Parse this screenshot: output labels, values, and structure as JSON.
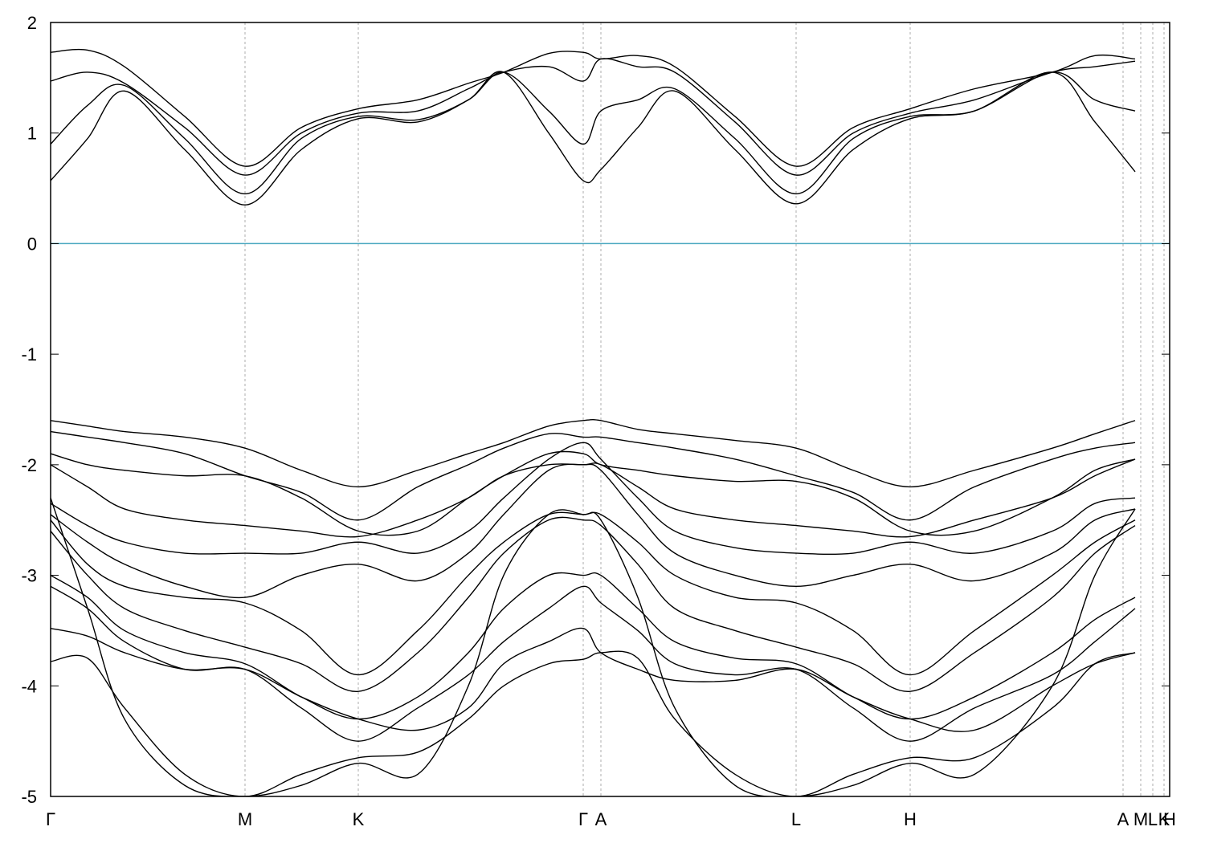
{
  "chart_data": {
    "type": "line",
    "xlim": [
      0,
      1393
    ],
    "ylim": [
      -5,
      2
    ],
    "yticks": [
      -5,
      -4,
      -3,
      -2,
      -1,
      0,
      1,
      2
    ],
    "xticks": [
      {
        "value": 0,
        "label": "Γ"
      },
      {
        "value": 242,
        "label": "M"
      },
      {
        "value": 383,
        "label": "K"
      },
      {
        "value": 663,
        "label": "Γ"
      },
      {
        "value": 685,
        "label": "A"
      },
      {
        "value": 928,
        "label": "L"
      },
      {
        "value": 1070,
        "label": "H"
      },
      {
        "value": 1335,
        "label": "A"
      },
      {
        "value": 1357,
        "label": "M"
      },
      {
        "value": 1372,
        "label": "L"
      },
      {
        "value": 1386,
        "label": "K"
      },
      {
        "value": 1393,
        "label": "H"
      }
    ],
    "grid": true,
    "fermi_level": 0,
    "fermi_color": "#4aa8c0",
    "x": [
      0,
      46,
      92,
      167,
      242,
      312,
      383,
      457,
      520,
      564,
      620,
      663,
      685,
      731,
      777,
      852,
      928,
      999,
      1070,
      1150,
      1247,
      1300,
      1350
    ],
    "series": [
      {
        "color": "#000000",
        "values": [
          0.57,
          0.95,
          1.38,
          0.85,
          0.35,
          0.85,
          1.13,
          1.1,
          1.3,
          1.55,
          1.0,
          0.57,
          0.67,
          1.05,
          1.38,
          0.85,
          0.36,
          0.85,
          1.13,
          1.2,
          1.55,
          1.1,
          0.65
        ]
      },
      {
        "color": "#000000",
        "values": [
          0.9,
          1.25,
          1.43,
          0.95,
          0.45,
          0.95,
          1.15,
          1.12,
          1.3,
          1.55,
          1.2,
          0.9,
          1.2,
          1.3,
          1.4,
          0.95,
          0.45,
          0.95,
          1.15,
          1.2,
          1.55,
          1.3,
          1.2
        ]
      },
      {
        "color": "#000000",
        "values": [
          1.47,
          1.55,
          1.45,
          1.05,
          0.62,
          1.0,
          1.18,
          1.2,
          1.4,
          1.55,
          1.6,
          1.47,
          1.67,
          1.6,
          1.55,
          1.1,
          0.62,
          1.0,
          1.18,
          1.3,
          1.55,
          1.6,
          1.65
        ]
      },
      {
        "color": "#000000",
        "values": [
          1.73,
          1.75,
          1.6,
          1.15,
          0.7,
          1.05,
          1.22,
          1.3,
          1.45,
          1.55,
          1.72,
          1.73,
          1.67,
          1.7,
          1.6,
          1.15,
          0.7,
          1.05,
          1.22,
          1.4,
          1.55,
          1.7,
          1.67
        ]
      },
      {
        "color": "#000000",
        "values": [
          -1.6,
          -1.65,
          -1.7,
          -1.75,
          -1.85,
          -2.05,
          -2.2,
          -2.05,
          -1.9,
          -1.8,
          -1.65,
          -1.6,
          -1.6,
          -1.68,
          -1.72,
          -1.78,
          -1.85,
          -2.05,
          -2.2,
          -2.05,
          -1.85,
          -1.72,
          -1.6
        ]
      },
      {
        "color": "#000000",
        "values": [
          -1.7,
          -1.75,
          -1.8,
          -1.9,
          -2.1,
          -2.25,
          -2.5,
          -2.2,
          -2.0,
          -1.85,
          -1.72,
          -1.75,
          -1.75,
          -1.8,
          -1.85,
          -1.95,
          -2.1,
          -2.25,
          -2.5,
          -2.2,
          -1.95,
          -1.85,
          -1.8
        ]
      },
      {
        "color": "#000000",
        "values": [
          -1.9,
          -2.0,
          -2.05,
          -2.1,
          -2.1,
          -2.3,
          -2.6,
          -2.6,
          -2.3,
          -2.1,
          -1.9,
          -1.9,
          -2.0,
          -2.05,
          -2.1,
          -2.15,
          -2.15,
          -2.3,
          -2.6,
          -2.6,
          -2.3,
          -2.05,
          -1.95
        ]
      },
      {
        "color": "#000000",
        "values": [
          -2.0,
          -2.2,
          -2.4,
          -2.5,
          -2.55,
          -2.6,
          -2.65,
          -2.5,
          -2.3,
          -2.1,
          -2.0,
          -2.0,
          -2.0,
          -2.2,
          -2.4,
          -2.5,
          -2.55,
          -2.6,
          -2.65,
          -2.5,
          -2.3,
          -2.1,
          -1.95
        ]
      },
      {
        "color": "#000000",
        "values": [
          -2.35,
          -2.55,
          -2.7,
          -2.8,
          -2.8,
          -2.8,
          -2.7,
          -2.8,
          -2.6,
          -2.3,
          -1.95,
          -1.8,
          -1.95,
          -2.3,
          -2.6,
          -2.75,
          -2.8,
          -2.8,
          -2.7,
          -2.8,
          -2.6,
          -2.35,
          -2.3
        ]
      },
      {
        "color": "#000000",
        "values": [
          -2.45,
          -2.7,
          -2.9,
          -3.1,
          -3.2,
          -3.0,
          -2.9,
          -3.05,
          -2.8,
          -2.45,
          -2.05,
          -2.0,
          -2.05,
          -2.45,
          -2.8,
          -3.0,
          -3.1,
          -3.0,
          -2.9,
          -3.05,
          -2.8,
          -2.5,
          -2.4
        ]
      },
      {
        "color": "#000000",
        "values": [
          -2.5,
          -2.9,
          -3.1,
          -3.2,
          -3.25,
          -3.5,
          -3.9,
          -3.5,
          -3.0,
          -2.7,
          -2.45,
          -2.45,
          -2.45,
          -2.7,
          -3.0,
          -3.2,
          -3.25,
          -3.5,
          -3.9,
          -3.5,
          -3.0,
          -2.7,
          -2.5
        ]
      },
      {
        "color": "#000000",
        "values": [
          -2.6,
          -3.0,
          -3.3,
          -3.5,
          -3.65,
          -3.8,
          -4.05,
          -3.7,
          -3.2,
          -2.8,
          -2.5,
          -2.5,
          -2.55,
          -2.9,
          -3.3,
          -3.5,
          -3.65,
          -3.8,
          -4.05,
          -3.7,
          -3.2,
          -2.8,
          -2.55
        ]
      },
      {
        "color": "#000000",
        "values": [
          -3.0,
          -3.2,
          -3.5,
          -3.7,
          -3.8,
          -4.1,
          -4.3,
          -4.1,
          -3.7,
          -3.3,
          -3.0,
          -3.0,
          -3.0,
          -3.3,
          -3.6,
          -3.75,
          -3.8,
          -4.1,
          -4.3,
          -4.1,
          -3.7,
          -3.4,
          -3.2
        ]
      },
      {
        "color": "#000000",
        "values": [
          -3.1,
          -3.3,
          -3.6,
          -3.85,
          -3.85,
          -4.2,
          -4.5,
          -4.2,
          -3.9,
          -3.6,
          -3.3,
          -3.1,
          -3.25,
          -3.5,
          -3.8,
          -3.9,
          -3.85,
          -4.2,
          -4.5,
          -4.2,
          -3.9,
          -3.6,
          -3.3
        ]
      },
      {
        "color": "#000000",
        "values": [
          -3.48,
          -3.55,
          -3.7,
          -3.85,
          -3.85,
          -4.1,
          -4.3,
          -4.4,
          -4.2,
          -3.8,
          -3.6,
          -3.48,
          -3.7,
          -3.85,
          -3.95,
          -3.95,
          -3.85,
          -4.1,
          -4.3,
          -4.4,
          -4.0,
          -3.8,
          -3.7
        ]
      },
      {
        "color": "#000000",
        "values": [
          -3.78,
          -3.75,
          -4.2,
          -4.8,
          -5.0,
          -4.8,
          -4.65,
          -4.6,
          -4.3,
          -4.0,
          -3.8,
          -3.76,
          -3.7,
          -3.75,
          -4.3,
          -4.8,
          -5.0,
          -4.8,
          -4.65,
          -4.65,
          -4.2,
          -3.8,
          -3.7
        ]
      },
      {
        "color": "#000000",
        "values": [
          -2.3,
          -3.3,
          -4.3,
          -4.9,
          -5.0,
          -4.9,
          -4.7,
          -4.8,
          -4.0,
          -3.0,
          -2.45,
          -2.45,
          -2.5,
          -3.2,
          -4.2,
          -4.9,
          -5.0,
          -4.9,
          -4.7,
          -4.8,
          -4.0,
          -3.0,
          -2.4
        ]
      }
    ]
  }
}
